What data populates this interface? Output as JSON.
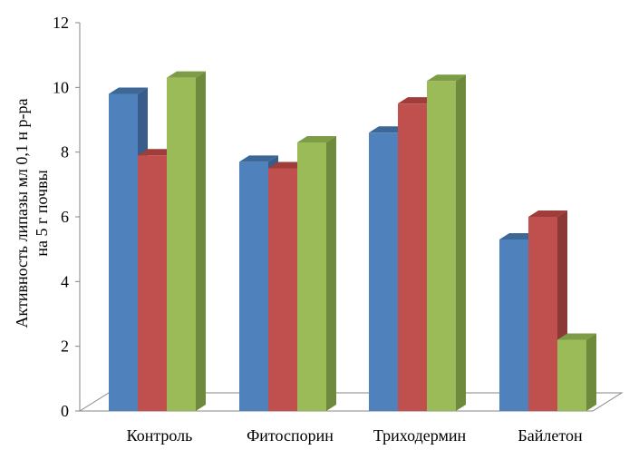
{
  "chart_data": {
    "type": "bar",
    "title": "",
    "xlabel": "",
    "ylabel_lines": [
      "Активность липазы мл 0,1  н р-ра",
      "на  5 г почвы"
    ],
    "categories": [
      "Контроль",
      "Фитоспорин",
      "Триходермин",
      "Байлетон"
    ],
    "series": [
      {
        "values": [
          9.8,
          7.7,
          8.6,
          5.3
        ],
        "color": "#4F81BD",
        "side": "#385D8A",
        "top": "#3C6796"
      },
      {
        "values": [
          7.9,
          7.5,
          9.5,
          6.0
        ],
        "color": "#C0504D",
        "side": "#8C3836",
        "top": "#9E3D3A"
      },
      {
        "values": [
          10.3,
          8.3,
          10.2,
          2.2
        ],
        "color": "#9BBB59",
        "side": "#6E8B3D",
        "top": "#7C9D45"
      }
    ],
    "ylim": [
      0,
      12
    ],
    "yticks": [
      "0",
      "2",
      "4",
      "6",
      "8",
      "10",
      "12"
    ],
    "grid": false,
    "legend": "none",
    "style": "3d-clustered-column"
  }
}
